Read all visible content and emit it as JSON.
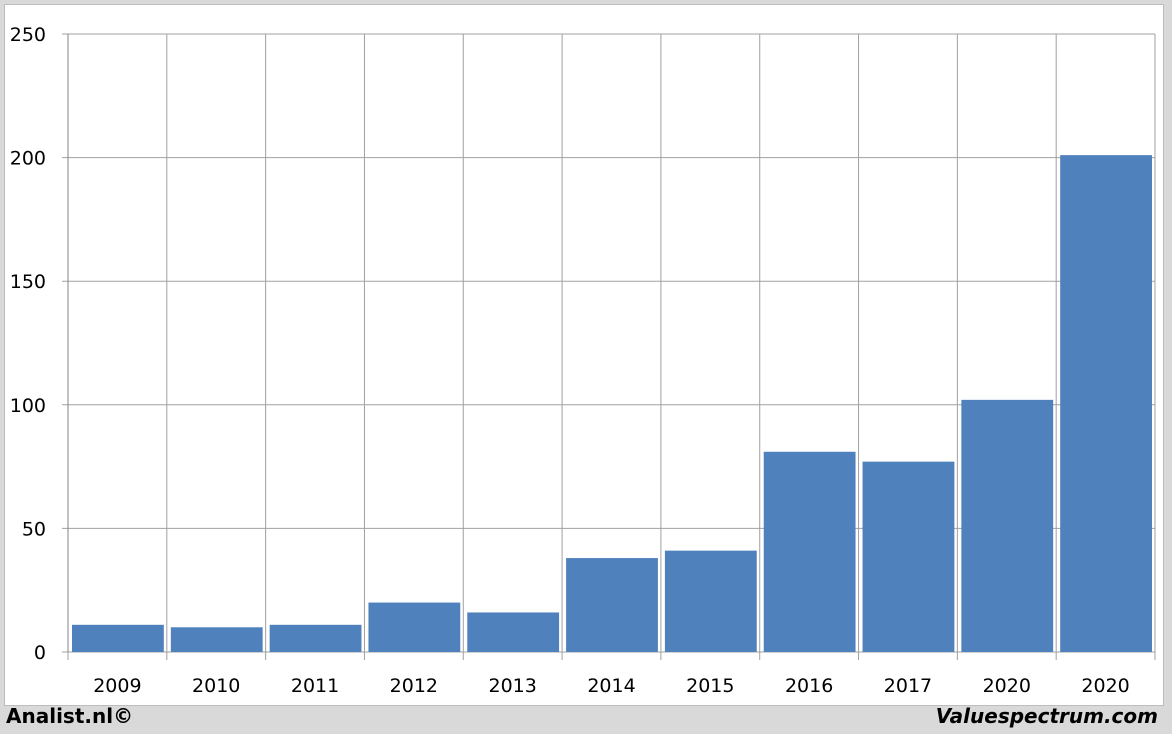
{
  "chart_data": {
    "type": "bar",
    "categories": [
      "2009",
      "2010",
      "2011",
      "2012",
      "2013",
      "2014",
      "2015",
      "2016",
      "2017",
      "2020",
      "2020"
    ],
    "values": [
      11,
      10,
      11,
      20,
      16,
      38,
      41,
      81,
      77,
      102,
      201
    ],
    "ylim": [
      0,
      250
    ],
    "yticks": [
      0,
      50,
      100,
      150,
      200,
      250
    ],
    "grid": true,
    "bar_color": "#4f81bd",
    "grid_color": "#a0a0a0"
  },
  "footer": {
    "left": "Analist.nl©",
    "right": "Valuespectrum.com"
  }
}
